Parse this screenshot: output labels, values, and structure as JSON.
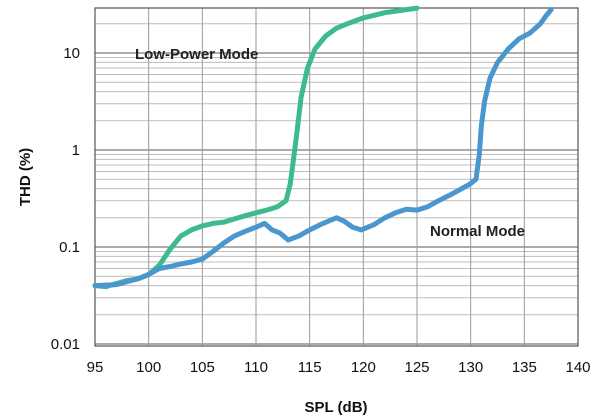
{
  "chart_data": {
    "type": "line",
    "xlabel": "SPL (dB)",
    "ylabel": "THD (%)",
    "xlim": [
      95,
      140
    ],
    "ylim": [
      0.01,
      30
    ],
    "yscale": "log",
    "grid": true,
    "x_ticks": [
      "95",
      "100",
      "105",
      "110",
      "115",
      "120",
      "125",
      "130",
      "135",
      "140"
    ],
    "y_ticks": [
      "0.01",
      "0.1",
      "1",
      "10"
    ],
    "series": [
      {
        "name": "Low-Power Mode",
        "color": "#3dbb8a",
        "points": [
          [
            95,
            0.04
          ],
          [
            96,
            0.039
          ],
          [
            97,
            0.042
          ],
          [
            98,
            0.045
          ],
          [
            99,
            0.047
          ],
          [
            100,
            0.052
          ],
          [
            101,
            0.065
          ],
          [
            102,
            0.095
          ],
          [
            103,
            0.13
          ],
          [
            104,
            0.15
          ],
          [
            105,
            0.165
          ],
          [
            106,
            0.175
          ],
          [
            107,
            0.18
          ],
          [
            108,
            0.195
          ],
          [
            109,
            0.21
          ],
          [
            110,
            0.225
          ],
          [
            111,
            0.24
          ],
          [
            112,
            0.26
          ],
          [
            112.8,
            0.3
          ],
          [
            113.2,
            0.45
          ],
          [
            113.7,
            1.2
          ],
          [
            114.2,
            3.5
          ],
          [
            114.8,
            7
          ],
          [
            115.5,
            11
          ],
          [
            116.5,
            15
          ],
          [
            117.5,
            18
          ],
          [
            118.5,
            20
          ],
          [
            120,
            23
          ],
          [
            122,
            26
          ],
          [
            124,
            28
          ],
          [
            125,
            29
          ]
        ]
      },
      {
        "name": "Normal Mode",
        "color": "#4a97cf",
        "points": [
          [
            95,
            0.04
          ],
          [
            97,
            0.041
          ],
          [
            98,
            0.044
          ],
          [
            99,
            0.047
          ],
          [
            100,
            0.052
          ],
          [
            101,
            0.06
          ],
          [
            102,
            0.063
          ],
          [
            103,
            0.067
          ],
          [
            104,
            0.07
          ],
          [
            105,
            0.075
          ],
          [
            106,
            0.09
          ],
          [
            107,
            0.11
          ],
          [
            108,
            0.13
          ],
          [
            109,
            0.145
          ],
          [
            110,
            0.16
          ],
          [
            110.8,
            0.175
          ],
          [
            111.5,
            0.15
          ],
          [
            112.2,
            0.14
          ],
          [
            113,
            0.118
          ],
          [
            114,
            0.13
          ],
          [
            115,
            0.15
          ],
          [
            116,
            0.17
          ],
          [
            117,
            0.19
          ],
          [
            117.5,
            0.2
          ],
          [
            118.2,
            0.185
          ],
          [
            119,
            0.16
          ],
          [
            119.8,
            0.15
          ],
          [
            121,
            0.17
          ],
          [
            122,
            0.2
          ],
          [
            123,
            0.225
          ],
          [
            124,
            0.245
          ],
          [
            125,
            0.24
          ],
          [
            126,
            0.26
          ],
          [
            127,
            0.3
          ],
          [
            128,
            0.34
          ],
          [
            129,
            0.39
          ],
          [
            130,
            0.45
          ],
          [
            130.5,
            0.5
          ],
          [
            130.8,
            0.9
          ],
          [
            131,
            1.8
          ],
          [
            131.3,
            3.2
          ],
          [
            131.8,
            5.5
          ],
          [
            132.5,
            8
          ],
          [
            133.5,
            11
          ],
          [
            134.5,
            14
          ],
          [
            135.5,
            16
          ],
          [
            136.5,
            20
          ],
          [
            137,
            24
          ],
          [
            137.5,
            28
          ]
        ]
      }
    ]
  },
  "annotations": {
    "low_power_label": "Low-Power Mode",
    "normal_label": "Normal Mode"
  }
}
